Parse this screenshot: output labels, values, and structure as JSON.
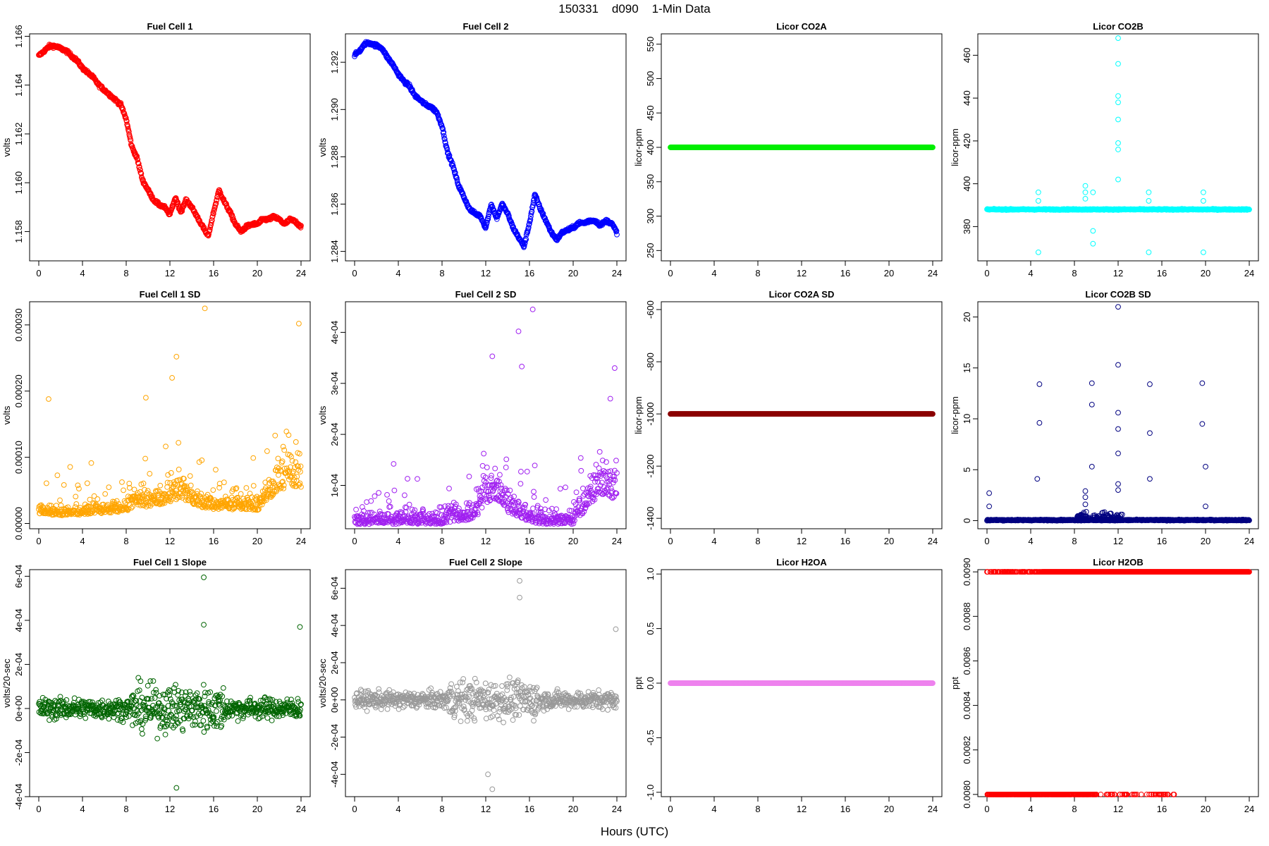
{
  "figure": {
    "title": "150331    d090    1-Min Data",
    "xlabel": "Hours (UTC)"
  },
  "chart_data": [
    {
      "type": "scatter",
      "title": "Fuel Cell 1",
      "ylabel": "volts",
      "color": "#ff0000",
      "xlim": [
        0,
        24
      ],
      "xticks": [
        0,
        4,
        8,
        12,
        16,
        20,
        24
      ],
      "ylim": [
        1.1568,
        1.1661
      ],
      "yticks": [
        1.158,
        1.16,
        1.162,
        1.164,
        1.166
      ],
      "yticklabels": [
        "1.158",
        "1.160",
        "1.162",
        "1.164",
        "1.166"
      ],
      "series": [
        {
          "x": [
            0,
            0.5,
            1,
            1.5,
            2,
            2.5,
            3,
            3.5,
            4,
            4.5,
            5,
            5.5,
            6,
            6.5,
            7,
            7.5,
            8,
            8.5,
            9,
            9.5,
            10,
            10.5,
            11,
            11.5,
            12,
            12.5,
            13,
            13.5,
            14,
            14.5,
            15,
            15.5,
            16,
            16.5,
            17,
            17.5,
            18,
            18.5,
            19,
            19.5,
            20,
            20.5,
            21,
            21.5,
            22,
            22.5,
            23,
            23.5,
            24
          ],
          "y": [
            1.1652,
            1.1654,
            1.1656,
            1.1656,
            1.1655,
            1.1654,
            1.1652,
            1.165,
            1.1647,
            1.1645,
            1.1643,
            1.164,
            1.1638,
            1.1636,
            1.1634,
            1.1632,
            1.1626,
            1.1615,
            1.161,
            1.1601,
            1.1597,
            1.1593,
            1.1591,
            1.159,
            1.1587,
            1.1594,
            1.1588,
            1.1593,
            1.159,
            1.1586,
            1.1582,
            1.1578,
            1.1588,
            1.1597,
            1.1592,
            1.1588,
            1.1583,
            1.158,
            1.1582,
            1.1583,
            1.1583,
            1.1585,
            1.1585,
            1.1586,
            1.1585,
            1.1583,
            1.1585,
            1.1584,
            1.1582
          ]
        }
      ]
    },
    {
      "type": "scatter",
      "title": "Fuel Cell 2",
      "ylabel": "volts",
      "color": "#0000ff",
      "xlim": [
        0,
        24
      ],
      "xticks": [
        0,
        4,
        8,
        12,
        16,
        20,
        24
      ],
      "ylim": [
        1.2836,
        1.2932
      ],
      "yticks": [
        1.284,
        1.286,
        1.288,
        1.29,
        1.292
      ],
      "yticklabels": [
        "1.284",
        "1.286",
        "1.288",
        "1.290",
        "1.292"
      ],
      "series": [
        {
          "x": [
            0,
            0.5,
            1,
            1.5,
            2,
            2.5,
            3,
            3.5,
            4,
            4.5,
            5,
            5.5,
            6,
            6.5,
            7,
            7.5,
            8,
            8.5,
            9,
            9.5,
            10,
            10.5,
            11,
            11.5,
            12,
            12.5,
            13,
            13.5,
            14,
            14.5,
            15,
            15.5,
            16,
            16.5,
            17,
            17.5,
            18,
            18.5,
            19,
            19.5,
            20,
            20.5,
            21,
            21.5,
            22,
            22.5,
            23,
            23.5,
            24
          ],
          "y": [
            1.2923,
            1.2925,
            1.2928,
            1.2928,
            1.2927,
            1.2926,
            1.2922,
            1.2919,
            1.2915,
            1.2912,
            1.291,
            1.2906,
            1.2904,
            1.2902,
            1.2901,
            1.2899,
            1.2893,
            1.2882,
            1.2876,
            1.2868,
            1.2863,
            1.2858,
            1.2856,
            1.2855,
            1.285,
            1.286,
            1.2854,
            1.286,
            1.2856,
            1.285,
            1.2846,
            1.2842,
            1.2852,
            1.2864,
            1.2858,
            1.2853,
            1.2848,
            1.2845,
            1.2848,
            1.2849,
            1.285,
            1.2852,
            1.2852,
            1.2853,
            1.2853,
            1.2851,
            1.2853,
            1.2852,
            1.2848
          ]
        }
      ]
    },
    {
      "type": "scatter",
      "title": "Licor CO2A",
      "ylabel": "licor-ppm",
      "color": "#00ee00",
      "xlim": [
        0,
        24
      ],
      "xticks": [
        0,
        4,
        8,
        12,
        16,
        20,
        24
      ],
      "ylim": [
        235,
        565
      ],
      "yticks": [
        250,
        300,
        350,
        400,
        450,
        500,
        550
      ],
      "yticklabels": [
        "250",
        "300",
        "350",
        "400",
        "450",
        "500",
        "550"
      ],
      "series": [
        {
          "x": [
            0,
            24
          ],
          "y": [
            400,
            400
          ]
        }
      ]
    },
    {
      "type": "scatter",
      "title": "Licor CO2B",
      "ylabel": "licor-ppm",
      "color": "#00ffff",
      "xlim": [
        0,
        24
      ],
      "xticks": [
        0,
        4,
        8,
        12,
        16,
        20,
        24
      ],
      "ylim": [
        364,
        470
      ],
      "yticks": [
        380,
        400,
        420,
        440,
        460
      ],
      "yticklabels": [
        "380",
        "400",
        "420",
        "440",
        "460"
      ],
      "series": [
        {
          "x": [
            0,
            24
          ],
          "y": [
            388,
            388
          ]
        }
      ],
      "outliers": [
        {
          "x": 4.7,
          "y": [
            368,
            392,
            396
          ]
        },
        {
          "x": 9.0,
          "y": [
            399,
            396,
            393
          ]
        },
        {
          "x": 9.7,
          "y": [
            372,
            378,
            396
          ]
        },
        {
          "x": 12.0,
          "y": [
            402,
            416,
            419,
            430,
            438,
            441,
            456,
            468
          ]
        },
        {
          "x": 14.8,
          "y": [
            368,
            392,
            396
          ]
        },
        {
          "x": 19.8,
          "y": [
            368,
            392,
            396
          ]
        }
      ]
    },
    {
      "type": "scatter",
      "title": "Fuel Cell 1 SD",
      "ylabel": "volts",
      "color": "#ffa500",
      "xlim": [
        0,
        24
      ],
      "xticks": [
        0,
        4,
        8,
        12,
        16,
        20,
        24
      ],
      "ylim": [
        -8e-06,
        0.000335
      ],
      "yticks": [
        0,
        0.0001,
        0.0002,
        0.0003
      ],
      "yticklabels": [
        "0.00000",
        "0.00010",
        "0.00020",
        "0.00030"
      ],
      "series": [
        {
          "x": [
            0,
            1,
            2,
            3,
            4,
            5,
            6,
            7,
            8,
            9,
            10,
            11,
            12,
            13,
            14,
            15,
            16,
            17,
            18,
            19,
            20,
            21,
            22,
            23,
            24
          ],
          "y": [
            2.5e-05,
            2.2e-05,
            2e-05,
            2e-05,
            2.2e-05,
            2.5e-05,
            2.5e-05,
            2.8e-05,
            3e-05,
            4.5e-05,
            4e-05,
            4.5e-05,
            5.5e-05,
            6e-05,
            5e-05,
            4e-05,
            3.5e-05,
            3.5e-05,
            3.5e-05,
            3.5e-05,
            3e-05,
            6e-05,
            8e-05,
            9.5e-05,
            9e-05
          ]
        }
      ],
      "outliers": [
        {
          "x": 0.9,
          "y": [
            0.000188
          ]
        },
        {
          "x": 12.6,
          "y": [
            0.000252
          ]
        },
        {
          "x": 15.2,
          "y": [
            0.000325
          ]
        },
        {
          "x": 23.8,
          "y": [
            0.000302
          ]
        },
        {
          "x": 9.8,
          "y": [
            0.00019
          ]
        },
        {
          "x": 12.2,
          "y": [
            0.00022
          ]
        }
      ]
    },
    {
      "type": "scatter",
      "title": "Fuel Cell 2 SD",
      "ylabel": "volts",
      "color": "#a020f0",
      "xlim": [
        0,
        24
      ],
      "xticks": [
        0,
        4,
        8,
        12,
        16,
        20,
        24
      ],
      "ylim": [
        1.5e-05,
        0.00046
      ],
      "yticks": [
        0.0001,
        0.0002,
        0.0003,
        0.0004
      ],
      "yticklabels": [
        "1e-04",
        "2e-04",
        "3e-04",
        "4e-04"
      ],
      "series": [
        {
          "x": [
            0,
            1,
            2,
            3,
            4,
            5,
            6,
            7,
            8,
            9,
            10,
            11,
            12,
            13,
            14,
            15,
            16,
            17,
            18,
            19,
            20,
            21,
            22,
            23,
            24
          ],
          "y": [
            4e-05,
            4e-05,
            4e-05,
            4e-05,
            4e-05,
            4e-05,
            4e-05,
            4e-05,
            4e-05,
            5e-05,
            5e-05,
            6e-05,
            0.0001,
            0.00012,
            8e-05,
            6e-05,
            5e-05,
            4e-05,
            4e-05,
            4e-05,
            4e-05,
            8e-05,
            0.00012,
            0.00013,
            0.00012
          ]
        }
      ],
      "outliers": [
        {
          "x": 12.6,
          "y": [
            0.000353
          ]
        },
        {
          "x": 15.0,
          "y": [
            0.000402
          ]
        },
        {
          "x": 16.3,
          "y": [
            0.000445
          ]
        },
        {
          "x": 15.3,
          "y": [
            0.000333
          ]
        },
        {
          "x": 23.8,
          "y": [
            0.00033
          ]
        },
        {
          "x": 23.4,
          "y": [
            0.00027
          ]
        }
      ]
    },
    {
      "type": "scatter",
      "title": "Licor CO2A SD",
      "ylabel": "licor-ppm",
      "color": "#8b0000",
      "xlim": [
        0,
        24
      ],
      "xticks": [
        0,
        4,
        8,
        12,
        16,
        20,
        24
      ],
      "ylim": [
        -1440,
        -570
      ],
      "yticks": [
        -1400,
        -1200,
        -1000,
        -800,
        -600
      ],
      "yticklabels": [
        "-1400",
        "-1200",
        "-1000",
        "-800",
        "-600"
      ],
      "series": [
        {
          "x": [
            0,
            24
          ],
          "y": [
            -1000,
            -1000
          ]
        }
      ]
    },
    {
      "type": "scatter",
      "title": "Licor CO2B SD",
      "ylabel": "licor-ppm",
      "color": "#000080",
      "xlim": [
        0,
        24
      ],
      "xticks": [
        0,
        4,
        8,
        12,
        16,
        20,
        24
      ],
      "ylim": [
        -0.8,
        21.5
      ],
      "yticks": [
        0,
        5,
        10,
        15,
        20
      ],
      "yticklabels": [
        "0",
        "5",
        "10",
        "15",
        "20"
      ],
      "series": [
        {
          "x": [
            0,
            24
          ],
          "y": [
            0.05,
            0.05
          ]
        }
      ],
      "outliers": [
        {
          "x": 0.2,
          "y": [
            2.7,
            1.4
          ]
        },
        {
          "x": 4.6,
          "y": [
            4.1
          ]
        },
        {
          "x": 4.8,
          "y": [
            13.4,
            9.6
          ]
        },
        {
          "x": 9.0,
          "y": [
            2.9,
            2.3,
            1.6
          ]
        },
        {
          "x": 9.6,
          "y": [
            11.4,
            13.5,
            5.3
          ]
        },
        {
          "x": 12.0,
          "y": [
            21.0,
            15.3,
            10.6,
            9.0,
            6.6,
            3.6,
            3.0
          ]
        },
        {
          "x": 14.9,
          "y": [
            13.4,
            8.6,
            4.1
          ]
        },
        {
          "x": 19.7,
          "y": [
            9.5,
            13.5
          ]
        },
        {
          "x": 20.0,
          "y": [
            5.3,
            1.4
          ]
        }
      ]
    },
    {
      "type": "scatter",
      "title": "Fuel Cell 1 Slope",
      "ylabel": "volts/20-sec",
      "color": "#006400",
      "xlim": [
        0,
        24
      ],
      "xticks": [
        0,
        4,
        8,
        12,
        16,
        20,
        24
      ],
      "ylim": [
        -0.0004,
        0.00063
      ],
      "yticks": [
        -0.0004,
        -0.0002,
        0,
        0.0002,
        0.0004,
        0.0006
      ],
      "yticklabels": [
        "-4e-04",
        "-2e-04",
        "0e+00",
        "2e-04",
        "4e-04",
        "6e-04"
      ],
      "series": [
        {
          "x": [
            0,
            24
          ],
          "y": [
            0,
            0
          ]
        }
      ],
      "outliers": [
        {
          "x": 15.1,
          "y": [
            0.000595,
            0.00038
          ]
        },
        {
          "x": 12.6,
          "y": [
            -0.00036
          ]
        },
        {
          "x": 23.9,
          "y": [
            0.00037
          ]
        }
      ]
    },
    {
      "type": "scatter",
      "title": "Fuel Cell 2 Slope",
      "ylabel": "volts/20-sec",
      "color": "#999999",
      "xlim": [
        0,
        24
      ],
      "xticks": [
        0,
        4,
        8,
        12,
        16,
        20,
        24
      ],
      "ylim": [
        -0.00052,
        0.0007
      ],
      "yticks": [
        -0.0004,
        -0.0002,
        0,
        0.0002,
        0.0004,
        0.0006
      ],
      "yticklabels": [
        "-4e-04",
        "-2e-04",
        "0e+00",
        "2e-04",
        "4e-04",
        "6e-04"
      ],
      "series": [
        {
          "x": [
            0,
            24
          ],
          "y": [
            0,
            0
          ]
        }
      ],
      "outliers": [
        {
          "x": 15.1,
          "y": [
            0.00064,
            0.00055
          ]
        },
        {
          "x": 12.6,
          "y": [
            -0.00048
          ]
        },
        {
          "x": 12.2,
          "y": [
            -0.0004
          ]
        },
        {
          "x": 23.9,
          "y": [
            0.00038
          ]
        }
      ]
    },
    {
      "type": "scatter",
      "title": "Licor H2OA",
      "ylabel": "ppt",
      "color": "#ee82ee",
      "xlim": [
        0,
        24
      ],
      "xticks": [
        0,
        4,
        8,
        12,
        16,
        20,
        24
      ],
      "ylim": [
        -1.04,
        1.04
      ],
      "yticks": [
        -1.0,
        -0.5,
        0.0,
        0.5,
        1.0
      ],
      "yticklabels": [
        "-1.0",
        "-0.5",
        "0.0",
        "0.5",
        "1.0"
      ],
      "series": [
        {
          "x": [
            0,
            24
          ],
          "y": [
            0,
            0
          ]
        }
      ]
    },
    {
      "type": "scatter",
      "title": "Licor H2OB",
      "ylabel": "ppt",
      "color": "#ff0000",
      "xlim": [
        0,
        24
      ],
      "xticks": [
        0,
        4,
        8,
        12,
        16,
        20,
        24
      ],
      "ylim": [
        0.00799,
        0.00901
      ],
      "yticks": [
        0.008,
        0.0082,
        0.0084,
        0.0086,
        0.0088,
        0.009
      ],
      "yticklabels": [
        "0.0080",
        "0.0082",
        "0.0084",
        "0.0086",
        "0.0088",
        "0.0090"
      ],
      "series": [
        {
          "x": [
            5.0,
            24
          ],
          "y": [
            0.009,
            0.009
          ]
        },
        {
          "x": 0,
          "y": 0.008
        }
      ],
      "outliers": []
    }
  ]
}
